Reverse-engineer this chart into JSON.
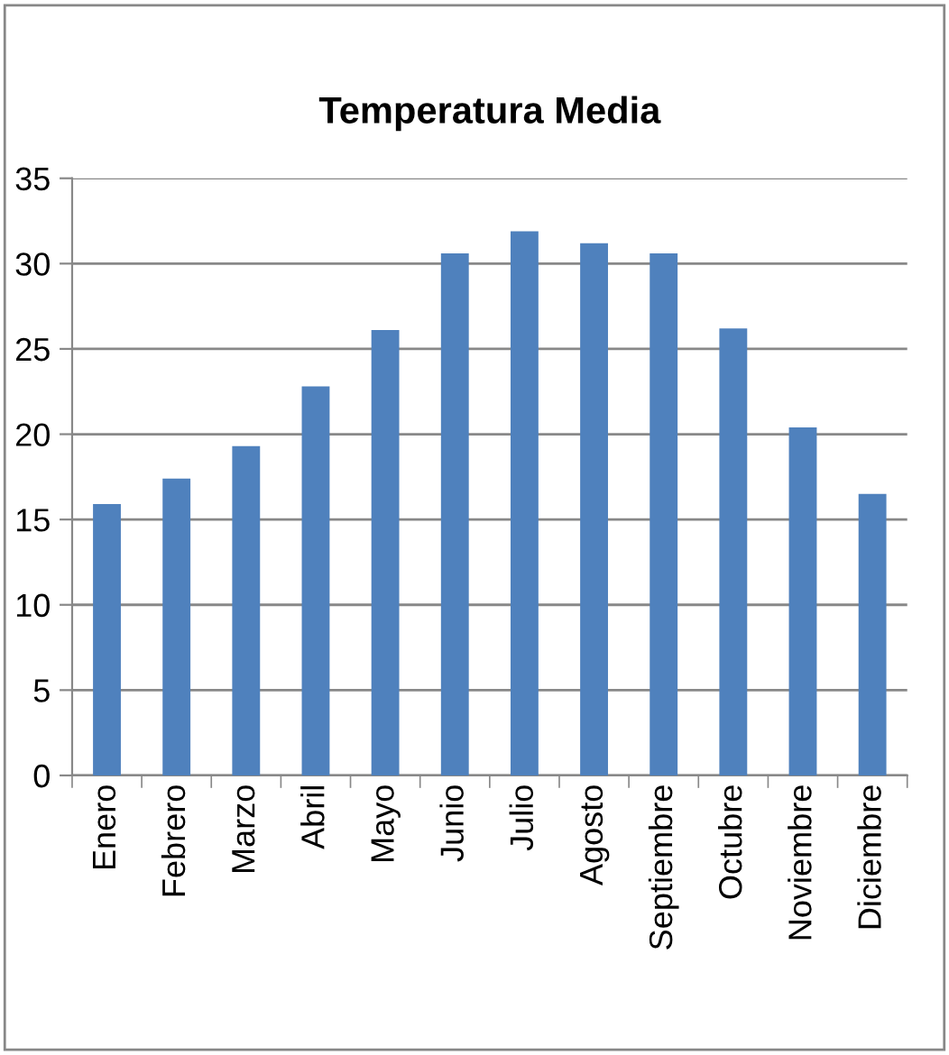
{
  "chart_data": {
    "type": "bar",
    "title": "Temperatura Media",
    "categories": [
      "Enero",
      "Febrero",
      "Marzo",
      "Abril",
      "Mayo",
      "Junio",
      "Julio",
      "Agosto",
      "Septiembre",
      "Octubre",
      "Noviembre",
      "Diciembre"
    ],
    "values": [
      15.9,
      17.4,
      19.3,
      22.8,
      26.1,
      30.6,
      31.9,
      31.2,
      30.6,
      26.2,
      20.4,
      16.5
    ],
    "color": "#4f81bd",
    "ylim": [
      0,
      35
    ],
    "yticks": [
      0,
      5,
      10,
      15,
      20,
      25,
      30,
      35
    ],
    "grid": "y",
    "legend": false
  }
}
